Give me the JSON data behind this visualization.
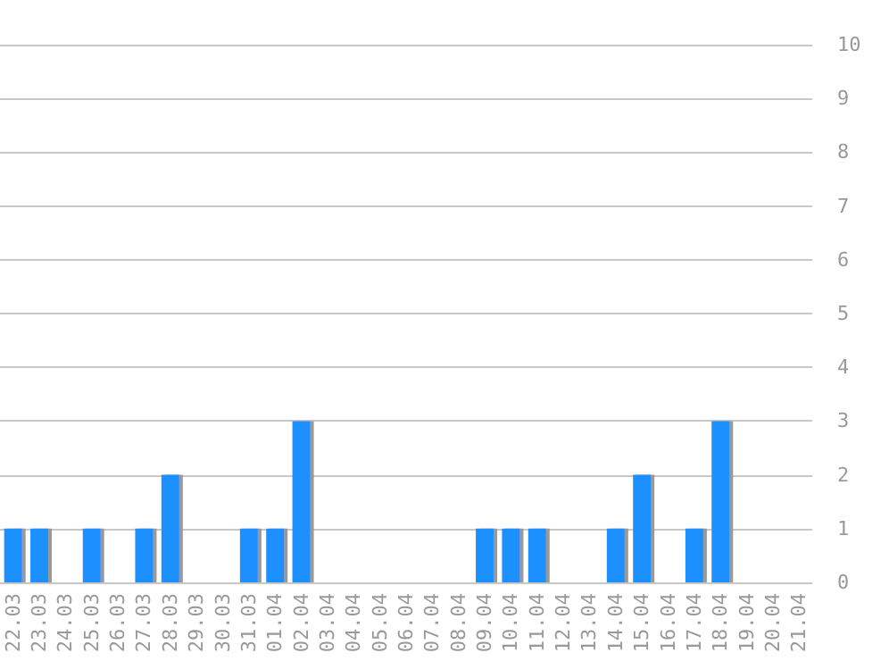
{
  "chart_data": {
    "type": "bar",
    "categories": [
      "22.03",
      "23.03",
      "24.03",
      "25.03",
      "26.03",
      "27.03",
      "28.03",
      "29.03",
      "30.03",
      "31.03",
      "01.04",
      "02.04",
      "03.04",
      "04.04",
      "05.04",
      "06.04",
      "07.04",
      "08.04",
      "09.04",
      "10.04",
      "11.04",
      "12.04",
      "13.04",
      "14.04",
      "15.04",
      "16.04",
      "17.04",
      "18.04",
      "19.04",
      "20.04",
      "21.04"
    ],
    "values": [
      1,
      1,
      0,
      1,
      0,
      1,
      2,
      0,
      0,
      1,
      1,
      3,
      0,
      0,
      0,
      0,
      0,
      0,
      1,
      1,
      1,
      0,
      0,
      1,
      2,
      0,
      1,
      3,
      0,
      0,
      0
    ],
    "color": "#1e90ff",
    "ylim": [
      0,
      10
    ],
    "yticks": [
      0,
      1,
      2,
      3,
      4,
      5,
      6,
      7,
      8,
      9,
      10
    ],
    "grid": "y"
  }
}
